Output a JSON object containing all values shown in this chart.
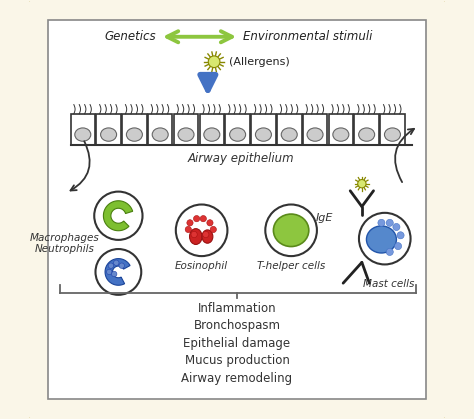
{
  "bg_color": "#faf6e8",
  "border_color": "#c8b464",
  "genetics_label": "Genetics",
  "env_label": "Environmental stimuli",
  "allergen_label": "(Allergens)",
  "epithelium_label": "Airway epithelium",
  "macrophage_label": "Macrophages\nNeutrophils",
  "eosinophil_label": "Eosinophil",
  "thelper_label": "T-helper cells",
  "ige_label": "IgE",
  "mast_label": "Mast cells",
  "effects": [
    "Inflammation",
    "Bronchospasm",
    "Epithelial damage",
    "Mucus production",
    "Airway remodeling"
  ],
  "green_arrow_color": "#8dc63f",
  "blue_arrow_color": "#4472c4",
  "green_cell_color": "#8dc63f",
  "red_cell_color": "#cc2222",
  "blue_cell_color": "#4472c4",
  "light_blue_color": "#a0b8e0"
}
